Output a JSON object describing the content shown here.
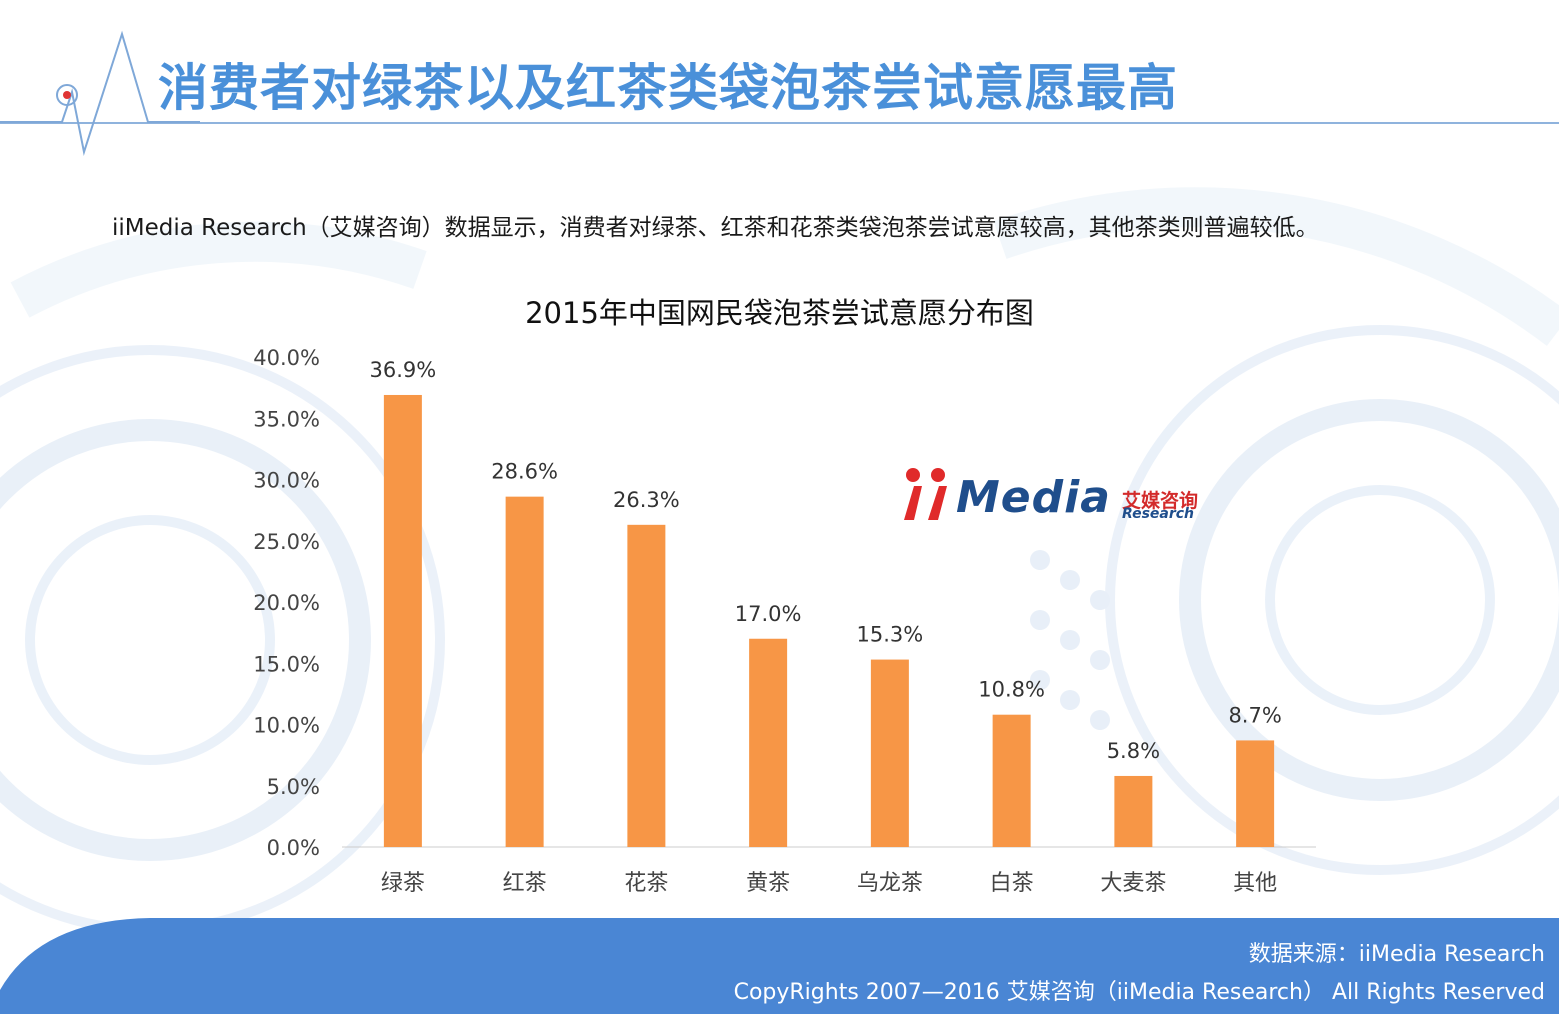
{
  "header": {
    "title": "消费者对绿茶以及红茶类袋泡茶尝试意愿最高",
    "pulse_icon": "radar-pulse-icon"
  },
  "subtitle": "iiMedia Research（艾媒咨询）数据显示，消费者对绿茶、红茶和花茶类袋泡茶尝试意愿较高，其他茶类则普遍较低。",
  "logo": {
    "wordmark": "Media",
    "cn": "艾媒咨询",
    "en": "Research"
  },
  "footer": {
    "source": "数据来源：iiMedia Research",
    "copyright": "CopyRights 2007—2016 艾媒咨询（iiMedia Research） All Rights Reserved"
  },
  "colors": {
    "bar": "#f79646",
    "title": "#4a90d9",
    "footer": "#4a86d4"
  },
  "chart_data": {
    "type": "bar",
    "title": "2015年中国网民袋泡茶尝试意愿分布图",
    "categories": [
      "绿茶",
      "红茶",
      "花茶",
      "黄茶",
      "乌龙茶",
      "白茶",
      "大麦茶",
      "其他"
    ],
    "values": [
      36.9,
      28.6,
      26.3,
      17.0,
      15.3,
      10.8,
      5.8,
      8.7
    ],
    "value_labels": [
      "36.9%",
      "28.6%",
      "26.3%",
      "17.0%",
      "15.3%",
      "10.8%",
      "5.8%",
      "8.7%"
    ],
    "yticks": [
      "0.0%",
      "5.0%",
      "10.0%",
      "15.0%",
      "20.0%",
      "25.0%",
      "30.0%",
      "35.0%",
      "40.0%"
    ],
    "ylim": [
      0,
      40
    ],
    "grid": false,
    "legend": "none"
  }
}
